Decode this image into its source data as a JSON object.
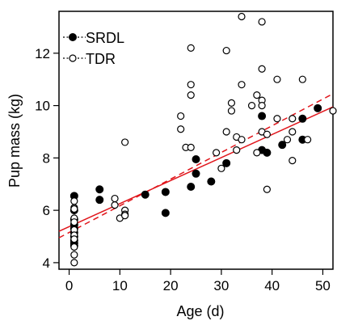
{
  "chart_data": {
    "type": "scatter",
    "xlabel": "Age (d)",
    "ylabel": "Pup mass (kg)",
    "xlim": [
      -2,
      52
    ],
    "ylim": [
      3.75,
      13.6
    ],
    "xticks": [
      0,
      10,
      20,
      30,
      40,
      50
    ],
    "yticks": [
      4,
      6,
      8,
      10,
      12
    ],
    "grid": false,
    "legend_position": "top-left",
    "line_color": "#e0151b",
    "series": [
      {
        "name": "SRDL",
        "marker": "filled-circle",
        "points": [
          [
            1,
            6.55
          ],
          [
            1,
            6.0
          ],
          [
            1,
            5.65
          ],
          [
            1,
            5.45
          ],
          [
            1,
            5.3
          ],
          [
            1,
            5.15
          ],
          [
            1,
            5.0
          ],
          [
            1,
            4.85
          ],
          [
            1,
            4.75
          ],
          [
            1,
            4.65
          ],
          [
            6,
            6.8
          ],
          [
            6,
            6.4
          ],
          [
            15,
            6.6
          ],
          [
            19,
            6.7
          ],
          [
            19,
            5.9
          ],
          [
            24,
            6.9
          ],
          [
            25,
            7.95
          ],
          [
            25,
            7.4
          ],
          [
            28,
            7.1
          ],
          [
            31,
            7.8
          ],
          [
            38,
            9.6
          ],
          [
            38,
            8.3
          ],
          [
            39,
            8.2
          ],
          [
            42,
            8.5
          ],
          [
            46,
            9.5
          ],
          [
            46,
            8.7
          ],
          [
            49,
            9.9
          ]
        ]
      },
      {
        "name": "TDR",
        "marker": "open-circle",
        "points": [
          [
            1,
            6.35
          ],
          [
            1,
            6.1
          ],
          [
            1,
            6.05
          ],
          [
            1,
            5.7
          ],
          [
            1,
            5.55
          ],
          [
            1,
            5.25
          ],
          [
            1,
            5.05
          ],
          [
            1,
            4.9
          ],
          [
            1,
            4.6
          ],
          [
            1,
            4.3
          ],
          [
            1,
            4.0
          ],
          [
            9,
            6.45
          ],
          [
            9,
            6.2
          ],
          [
            10,
            5.7
          ],
          [
            11,
            6.0
          ],
          [
            11,
            5.85
          ],
          [
            11,
            5.8
          ],
          [
            11,
            8.6
          ],
          [
            22,
            9.6
          ],
          [
            22,
            9.1
          ],
          [
            23,
            8.4
          ],
          [
            24,
            12.2
          ],
          [
            24,
            10.8
          ],
          [
            24,
            10.4
          ],
          [
            24,
            8.4
          ],
          [
            29,
            8.2
          ],
          [
            30,
            7.6
          ],
          [
            31,
            12.1
          ],
          [
            31,
            9.0
          ],
          [
            32,
            10.1
          ],
          [
            32,
            9.8
          ],
          [
            33,
            8.8
          ],
          [
            33,
            8.3
          ],
          [
            34,
            13.4
          ],
          [
            34,
            10.8
          ],
          [
            34,
            8.7
          ],
          [
            36,
            10.0
          ],
          [
            37,
            8.2
          ],
          [
            37,
            10.4
          ],
          [
            38,
            13.2
          ],
          [
            38,
            11.4
          ],
          [
            38,
            10.2
          ],
          [
            38,
            10.0
          ],
          [
            38,
            9.0
          ],
          [
            39,
            8.9
          ],
          [
            39,
            6.8
          ],
          [
            41,
            11.0
          ],
          [
            41,
            9.5
          ],
          [
            43,
            8.7
          ],
          [
            44,
            9.5
          ],
          [
            44,
            9.0
          ],
          [
            44,
            7.9
          ],
          [
            46,
            11.0
          ],
          [
            47,
            8.7
          ],
          [
            52,
            9.8
          ]
        ]
      }
    ],
    "fit_lines": [
      {
        "series": "SRDL",
        "style": "solid",
        "points": [
          [
            -2,
            5.2
          ],
          [
            52,
            9.95
          ]
        ]
      },
      {
        "series": "TDR",
        "style": "dashed",
        "points": [
          [
            -2,
            4.95
          ],
          [
            52,
            10.45
          ]
        ]
      }
    ]
  }
}
